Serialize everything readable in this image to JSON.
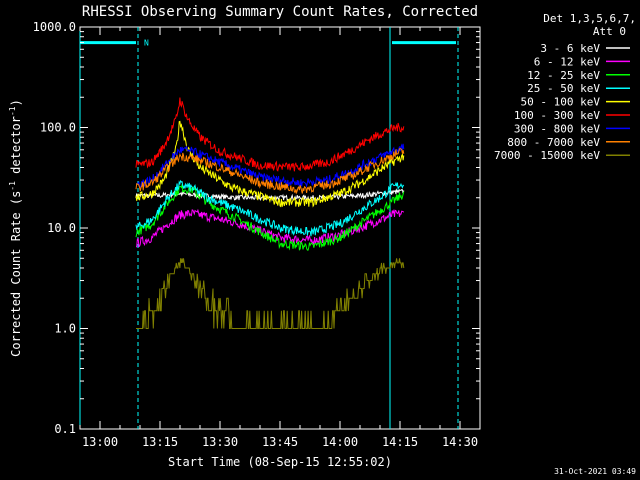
{
  "chart_data": {
    "type": "line",
    "title": "RHESSI Observing Summary Count Rates, Corrected",
    "xlabel": "Start Time (08-Sep-15 12:55:02)",
    "ylabel_main": "Corrected Count Rate (s",
    "ylabel_sup1": "-1",
    "ylabel_mid": " detector",
    "ylabel_sup2": "-1",
    "ylabel_end": ")",
    "yscale": "log",
    "ylim": [
      0.1,
      1000
    ],
    "xlim_minutes": [
      0,
      100
    ],
    "x_ticks": [
      {
        "label": "13:00",
        "minutes": 5
      },
      {
        "label": "13:15",
        "minutes": 20
      },
      {
        "label": "13:30",
        "minutes": 35
      },
      {
        "label": "13:45",
        "minutes": 50
      },
      {
        "label": "14:00",
        "minutes": 65
      },
      {
        "label": "14:15",
        "minutes": 80
      },
      {
        "label": "14:30",
        "minutes": 95
      }
    ],
    "y_ticks": [
      {
        "label": "1000.0",
        "value": 1000
      },
      {
        "label": "100.0",
        "value": 100
      },
      {
        "label": "10.0",
        "value": 10
      },
      {
        "label": "1.0",
        "value": 1
      },
      {
        "label": "0.1",
        "value": 0.1
      }
    ],
    "legend_header": [
      "Det 1,3,5,6,7,",
      "Att 0"
    ],
    "legend_position": "right",
    "data_range_minutes": [
      14,
      81
    ],
    "series": [
      {
        "name": "3 - 6 keV",
        "color": "#ffffff",
        "x": [
          14,
          20,
          25,
          30,
          40,
          50,
          60,
          70,
          75,
          80,
          81
        ],
        "y": [
          21,
          21,
          22,
          21,
          20,
          20,
          20,
          21,
          22,
          23,
          23
        ]
      },
      {
        "name": "6 - 12 keV",
        "color": "#ff00ff",
        "x": [
          14,
          18,
          22,
          25,
          28,
          32,
          40,
          50,
          58,
          65,
          70,
          75,
          78,
          81
        ],
        "y": [
          7,
          8,
          11,
          13.5,
          14,
          13,
          11,
          8,
          7.5,
          8.5,
          10,
          12,
          13.5,
          14
        ]
      },
      {
        "name": "12 - 25 keV",
        "color": "#00ff00",
        "x": [
          14,
          18,
          22,
          25,
          28,
          32,
          40,
          50,
          58,
          65,
          70,
          75,
          78,
          81
        ],
        "y": [
          9,
          11,
          18,
          25,
          24,
          18,
          12,
          7,
          6.5,
          8,
          11,
          15,
          18,
          22
        ]
      },
      {
        "name": "25 - 50 keV",
        "color": "#00ffff",
        "x": [
          14,
          18,
          22,
          25,
          28,
          32,
          40,
          50,
          58,
          65,
          70,
          75,
          78,
          81
        ],
        "y": [
          10,
          12,
          20,
          27,
          25,
          20,
          15,
          10,
          9,
          11,
          15,
          20,
          25,
          28
        ]
      },
      {
        "name": "50 - 100 keV",
        "color": "#ffff00",
        "x": [
          14,
          18,
          21,
          24,
          25,
          27,
          30,
          38,
          50,
          58,
          65,
          70,
          75,
          78,
          81
        ],
        "y": [
          20,
          22,
          30,
          60,
          120,
          60,
          40,
          25,
          18,
          18,
          22,
          28,
          38,
          45,
          52
        ]
      },
      {
        "name": "100 - 300 keV",
        "color": "#ff0000",
        "x": [
          14,
          18,
          21,
          24,
          25,
          27,
          30,
          35,
          45,
          55,
          62,
          68,
          72,
          76,
          79,
          81
        ],
        "y": [
          42,
          45,
          65,
          120,
          190,
          120,
          80,
          58,
          42,
          40,
          45,
          60,
          75,
          90,
          100,
          100
        ]
      },
      {
        "name": "300 - 800 keV",
        "color": "#0000ff",
        "x": [
          14,
          18,
          22,
          25,
          28,
          35,
          45,
          55,
          62,
          68,
          72,
          76,
          79,
          81
        ],
        "y": [
          27,
          30,
          45,
          60,
          58,
          45,
          32,
          28,
          30,
          37,
          45,
          53,
          60,
          63
        ]
      },
      {
        "name": "800 - 7000 keV",
        "color": "#ff8000",
        "x": [
          14,
          18,
          22,
          25,
          28,
          35,
          45,
          55,
          62,
          68,
          72,
          76,
          79,
          81
        ],
        "y": [
          25,
          28,
          40,
          52,
          50,
          40,
          28,
          24,
          27,
          33,
          40,
          48,
          55,
          58
        ]
      },
      {
        "name": "7000 - 15000 keV",
        "color": "#808000",
        "x": [
          14,
          16,
          18,
          20,
          22,
          24,
          25,
          27,
          29,
          32,
          35,
          40,
          45,
          50,
          55,
          60,
          65,
          68,
          72,
          76,
          79,
          81
        ],
        "y": [
          1,
          1,
          1.5,
          2,
          3,
          4,
          4.5,
          4,
          3,
          2,
          1.5,
          1,
          1,
          1,
          1,
          1,
          1.5,
          2,
          3,
          4,
          4.5,
          4.5
        ]
      }
    ],
    "attenuator_bars": [
      {
        "color": "#00ffff",
        "x_start": 0,
        "x_end": 14,
        "value": 700
      },
      {
        "color": "#00ffff",
        "x_start": 78,
        "x_end": 94,
        "value": 700
      }
    ],
    "vertical_lines": [
      {
        "minutes": 0,
        "style": "solid",
        "color": "#00ffff"
      },
      {
        "minutes": 14.5,
        "style": "dashed",
        "color": "#00ffff"
      },
      {
        "minutes": 77.5,
        "style": "solid",
        "color": "#00ffff"
      },
      {
        "minutes": 94.5,
        "style": "dashed",
        "color": "#00ffff"
      }
    ],
    "annotations": [
      {
        "text": "N",
        "minutes": 16,
        "value": 700,
        "color": "#00ffff"
      }
    ],
    "footer": "31-Oct-2021 03:49"
  }
}
